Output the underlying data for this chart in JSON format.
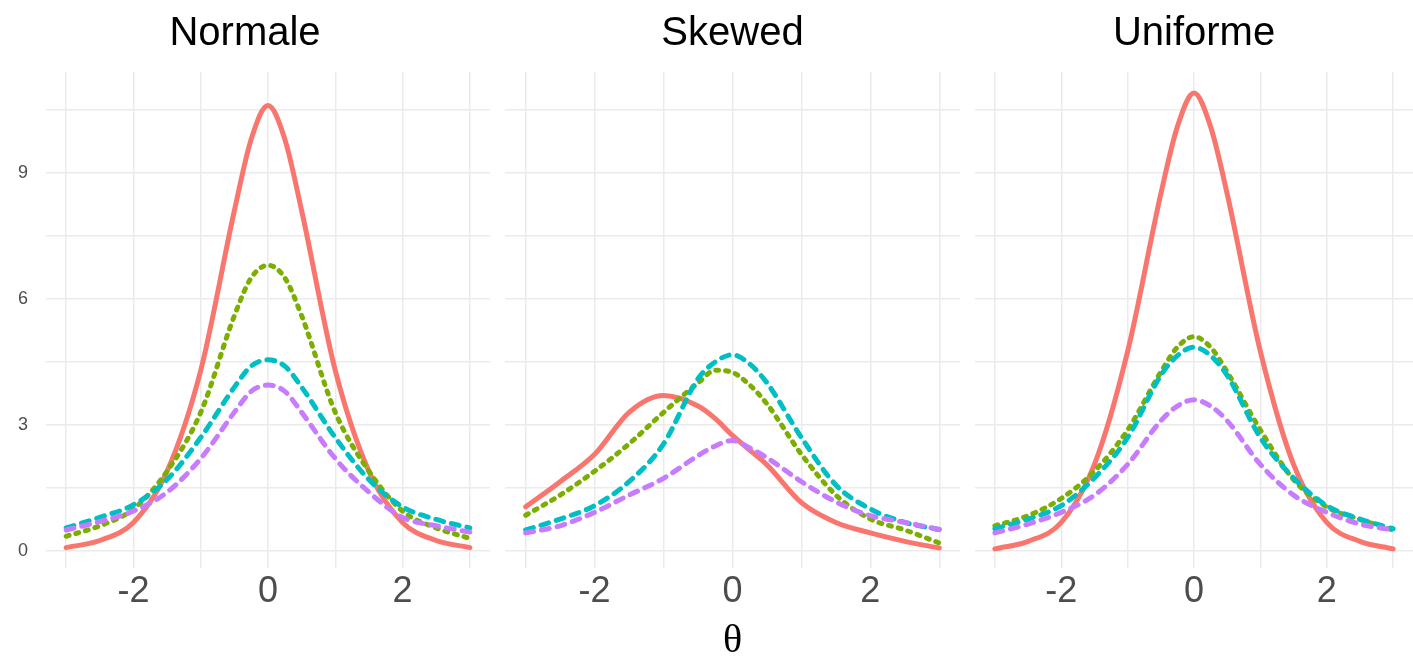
{
  "chart_data": [
    {
      "type": "line",
      "title": "Normale",
      "x": [
        -3,
        -2.5,
        -2,
        -1.5,
        -1,
        -0.5,
        -0.25,
        0,
        0.25,
        0.5,
        1,
        1.5,
        2,
        2.5,
        3
      ],
      "series": [
        {
          "color": "#f8766d",
          "line_style": "solid",
          "values": [
            0.08,
            0.25,
            0.68,
            1.9,
            4.3,
            8.1,
            9.8,
            10.6,
            9.8,
            8.1,
            4.3,
            1.9,
            0.68,
            0.25,
            0.08
          ]
        },
        {
          "color": "#7cae00",
          "line_style": "dotted",
          "values": [
            0.35,
            0.6,
            1.0,
            1.9,
            3.3,
            5.6,
            6.5,
            6.8,
            6.5,
            5.6,
            3.3,
            1.9,
            0.95,
            0.55,
            0.3
          ]
        },
        {
          "color": "#00bfc4",
          "line_style": "dashed",
          "values": [
            0.55,
            0.8,
            1.1,
            1.7,
            2.7,
            3.9,
            4.4,
            4.55,
            4.4,
            3.9,
            2.7,
            1.7,
            1.05,
            0.75,
            0.55
          ]
        },
        {
          "color": "#c77cff",
          "line_style": "dashed",
          "values": [
            0.5,
            0.7,
            0.95,
            1.4,
            2.2,
            3.3,
            3.8,
            3.95,
            3.8,
            3.3,
            2.2,
            1.4,
            0.8,
            0.6,
            0.45
          ]
        }
      ],
      "xlim": [
        -3.3,
        3.3
      ],
      "ylim": [
        -0.4,
        11.4
      ],
      "xticks": [
        {
          "value": -3,
          "label": null
        },
        -2,
        {
          "value": -1,
          "label": null
        },
        0,
        {
          "value": 1,
          "label": null
        },
        2,
        {
          "value": 3,
          "label": null
        }
      ],
      "yticks": [
        0,
        {
          "value": 1.5,
          "label": null
        },
        3,
        {
          "value": 4.5,
          "label": null
        },
        6,
        {
          "value": 7.5,
          "label": null
        },
        9,
        {
          "value": 10.5,
          "label": null
        }
      ],
      "grid": true,
      "legend": false
    },
    {
      "type": "line",
      "title": "Skewed",
      "xlabel": "θ",
      "x": [
        -3,
        -2.5,
        -2,
        -1.5,
        -1,
        -0.5,
        -0.25,
        0,
        0.25,
        0.5,
        1,
        1.5,
        2,
        2.5,
        3
      ],
      "series": [
        {
          "color": "#f8766d",
          "line_style": "solid",
          "values": [
            1.05,
            1.65,
            2.3,
            3.3,
            3.7,
            3.45,
            3.15,
            2.75,
            2.4,
            2.05,
            1.15,
            0.68,
            0.43,
            0.23,
            0.07
          ]
        },
        {
          "color": "#7cae00",
          "line_style": "dotted",
          "values": [
            0.85,
            1.33,
            1.9,
            2.55,
            3.3,
            4.0,
            4.3,
            4.25,
            3.95,
            3.5,
            2.3,
            1.33,
            0.76,
            0.5,
            0.19
          ]
        },
        {
          "color": "#00bfc4",
          "line_style": "dashed",
          "values": [
            0.5,
            0.76,
            1.08,
            1.65,
            2.55,
            4.1,
            4.5,
            4.67,
            4.45,
            4.0,
            2.7,
            1.57,
            1.0,
            0.68,
            0.51
          ]
        },
        {
          "color": "#c77cff",
          "line_style": "dashed",
          "values": [
            0.43,
            0.6,
            0.92,
            1.33,
            1.73,
            2.27,
            2.5,
            2.63,
            2.45,
            2.22,
            1.65,
            1.17,
            0.84,
            0.68,
            0.51
          ]
        }
      ],
      "xlim": [
        -3.3,
        3.3
      ],
      "ylim": [
        -0.4,
        11.4
      ],
      "xticks": [
        {
          "value": -3,
          "label": null
        },
        -2,
        {
          "value": -1,
          "label": null
        },
        0,
        {
          "value": 1,
          "label": null
        },
        2,
        {
          "value": 3,
          "label": null
        }
      ],
      "yticks": [
        0,
        {
          "value": 1.5,
          "label": null
        },
        3,
        {
          "value": 4.5,
          "label": null
        },
        6,
        {
          "value": 7.5,
          "label": null
        },
        9,
        {
          "value": 10.5,
          "label": null
        }
      ],
      "grid": true,
      "legend": false,
      "tick_labels": "x"
    },
    {
      "type": "line",
      "title": "Uniforme",
      "x": [
        -3,
        -2.5,
        -2,
        -1.5,
        -1,
        -0.5,
        -0.25,
        0,
        0.25,
        0.5,
        1,
        1.5,
        2,
        2.5,
        3
      ],
      "series": [
        {
          "color": "#f8766d",
          "line_style": "solid",
          "values": [
            0.05,
            0.23,
            0.68,
            2.06,
            4.75,
            8.5,
            10.1,
            10.9,
            10.1,
            8.5,
            4.75,
            2.06,
            0.68,
            0.23,
            0.05
          ]
        },
        {
          "color": "#7cae00",
          "line_style": "dotted",
          "values": [
            0.6,
            0.84,
            1.25,
            1.9,
            2.88,
            4.26,
            4.85,
            5.1,
            4.85,
            4.26,
            2.88,
            1.7,
            1.05,
            0.75,
            0.5
          ]
        },
        {
          "color": "#00bfc4",
          "line_style": "dashed",
          "values": [
            0.53,
            0.76,
            1.08,
            1.74,
            2.7,
            4.18,
            4.65,
            4.85,
            4.65,
            4.18,
            2.7,
            1.74,
            1.08,
            0.76,
            0.53
          ]
        },
        {
          "color": "#c77cff",
          "line_style": "dashed",
          "values": [
            0.43,
            0.64,
            0.92,
            1.33,
            2.06,
            3.1,
            3.45,
            3.6,
            3.45,
            3.1,
            2.06,
            1.33,
            0.92,
            0.64,
            0.5
          ]
        }
      ],
      "xlim": [
        -3.3,
        3.3
      ],
      "ylim": [
        -0.4,
        11.4
      ],
      "xticks": [
        {
          "value": -3,
          "label": null
        },
        -2,
        {
          "value": -1,
          "label": null
        },
        0,
        {
          "value": 1,
          "label": null
        },
        2,
        {
          "value": 3,
          "label": null
        }
      ],
      "yticks": [
        0,
        {
          "value": 1.5,
          "label": null
        },
        3,
        {
          "value": 4.5,
          "label": null
        },
        6,
        {
          "value": 7.5,
          "label": null
        },
        9,
        {
          "value": 10.5,
          "label": null
        }
      ],
      "grid": true,
      "legend": false,
      "tick_labels": "x"
    }
  ]
}
